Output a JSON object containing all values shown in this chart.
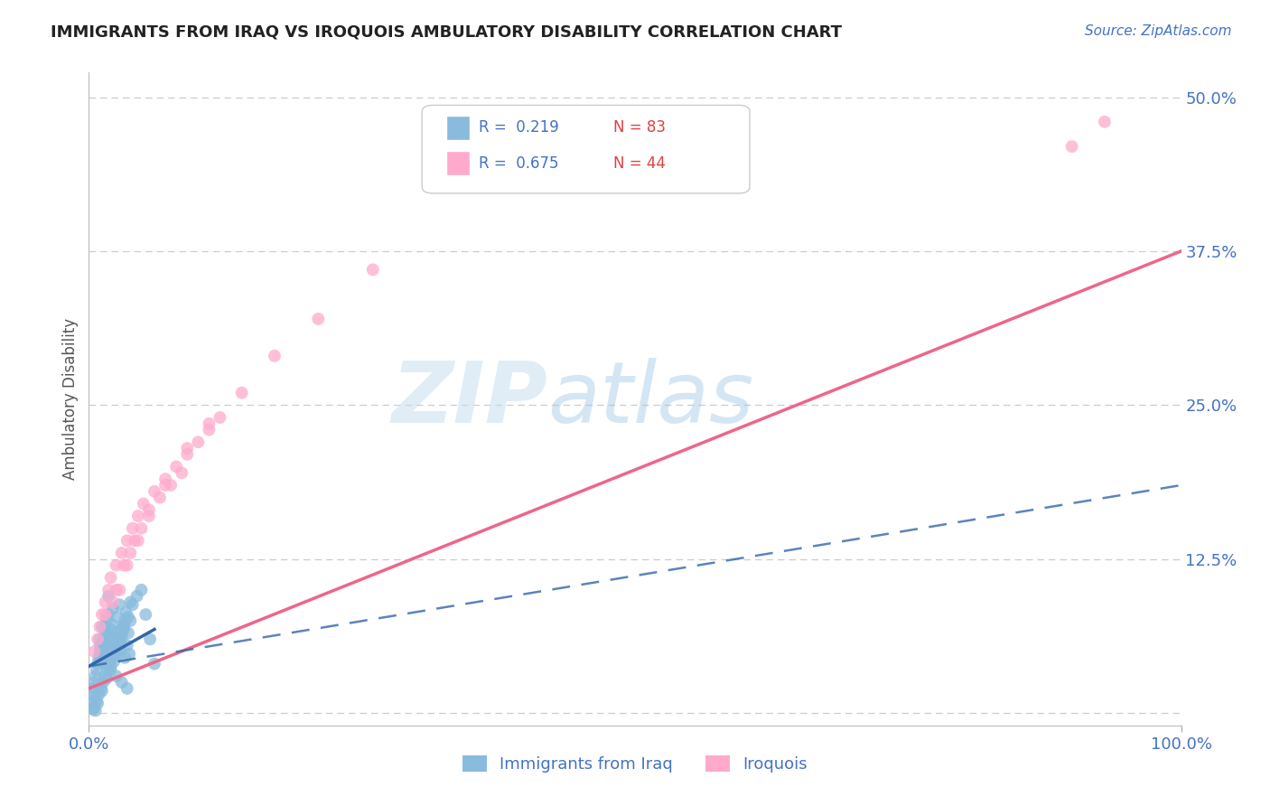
{
  "title": "IMMIGRANTS FROM IRAQ VS IROQUOIS AMBULATORY DISABILITY CORRELATION CHART",
  "source_text": "Source: ZipAtlas.com",
  "ylabel": "Ambulatory Disability",
  "watermark_zip": "ZIP",
  "watermark_atlas": "atlas",
  "legend_series1_label": "Immigrants from Iraq",
  "legend_series1_r": "0.219",
  "legend_series1_n": "83",
  "legend_series2_label": "Iroquois",
  "legend_series2_r": "0.675",
  "legend_series2_n": "44",
  "color_series1": "#88bbdd",
  "color_series2": "#ffaacc",
  "color_series1_line": "#3366aa",
  "color_series2_line": "#ee6688",
  "xlim": [
    0.0,
    1.0
  ],
  "ylim": [
    -0.01,
    0.52
  ],
  "background_color": "#ffffff",
  "series1_x": [
    0.002,
    0.003,
    0.004,
    0.005,
    0.006,
    0.007,
    0.008,
    0.009,
    0.01,
    0.01,
    0.01,
    0.011,
    0.012,
    0.012,
    0.013,
    0.014,
    0.015,
    0.015,
    0.015,
    0.016,
    0.017,
    0.018,
    0.018,
    0.019,
    0.02,
    0.02,
    0.02,
    0.021,
    0.022,
    0.022,
    0.023,
    0.024,
    0.025,
    0.025,
    0.026,
    0.027,
    0.028,
    0.028,
    0.029,
    0.03,
    0.03,
    0.031,
    0.032,
    0.033,
    0.034,
    0.035,
    0.035,
    0.036,
    0.037,
    0.038,
    0.005,
    0.007,
    0.009,
    0.011,
    0.013,
    0.015,
    0.017,
    0.019,
    0.021,
    0.023,
    0.025,
    0.027,
    0.029,
    0.031,
    0.033,
    0.008,
    0.012,
    0.016,
    0.02,
    0.024,
    0.028,
    0.032,
    0.036,
    0.04,
    0.044,
    0.048,
    0.052,
    0.056,
    0.06,
    0.004,
    0.006,
    0.018,
    0.038
  ],
  "series1_y": [
    0.01,
    0.015,
    0.02,
    0.025,
    0.03,
    0.035,
    0.04,
    0.045,
    0.05,
    0.055,
    0.06,
    0.045,
    0.05,
    0.07,
    0.055,
    0.06,
    0.065,
    0.07,
    0.04,
    0.075,
    0.048,
    0.052,
    0.08,
    0.058,
    0.062,
    0.068,
    0.035,
    0.072,
    0.055,
    0.085,
    0.042,
    0.058,
    0.065,
    0.03,
    0.078,
    0.048,
    0.052,
    0.088,
    0.058,
    0.062,
    0.025,
    0.068,
    0.072,
    0.045,
    0.082,
    0.055,
    0.02,
    0.065,
    0.048,
    0.075,
    0.005,
    0.01,
    0.015,
    0.02,
    0.025,
    0.03,
    0.035,
    0.04,
    0.045,
    0.05,
    0.055,
    0.06,
    0.065,
    0.07,
    0.075,
    0.008,
    0.018,
    0.028,
    0.038,
    0.048,
    0.058,
    0.068,
    0.078,
    0.088,
    0.095,
    0.1,
    0.08,
    0.06,
    0.04,
    0.003,
    0.002,
    0.095,
    0.09
  ],
  "series2_x": [
    0.005,
    0.008,
    0.01,
    0.012,
    0.015,
    0.018,
    0.02,
    0.022,
    0.025,
    0.028,
    0.03,
    0.032,
    0.035,
    0.038,
    0.04,
    0.042,
    0.045,
    0.048,
    0.05,
    0.055,
    0.06,
    0.065,
    0.07,
    0.075,
    0.08,
    0.085,
    0.09,
    0.1,
    0.11,
    0.12,
    0.015,
    0.025,
    0.035,
    0.045,
    0.055,
    0.07,
    0.09,
    0.11,
    0.14,
    0.17,
    0.21,
    0.26,
    0.9,
    0.93
  ],
  "series2_y": [
    0.05,
    0.06,
    0.07,
    0.08,
    0.09,
    0.1,
    0.11,
    0.09,
    0.12,
    0.1,
    0.13,
    0.12,
    0.14,
    0.13,
    0.15,
    0.14,
    0.16,
    0.15,
    0.17,
    0.165,
    0.18,
    0.175,
    0.19,
    0.185,
    0.2,
    0.195,
    0.21,
    0.22,
    0.23,
    0.24,
    0.08,
    0.1,
    0.12,
    0.14,
    0.16,
    0.185,
    0.215,
    0.235,
    0.26,
    0.29,
    0.32,
    0.36,
    0.46,
    0.48
  ],
  "iroquois_line_x0": 0.0,
  "iroquois_line_y0": 0.02,
  "iroquois_line_x1": 1.0,
  "iroquois_line_y1": 0.375,
  "iraq_solid_line_x0": 0.0,
  "iraq_solid_line_y0": 0.038,
  "iraq_solid_line_x1": 0.06,
  "iraq_solid_line_y1": 0.068,
  "iraq_dashed_line_x0": 0.0,
  "iraq_dashed_line_y0": 0.038,
  "iraq_dashed_line_x1": 1.0,
  "iraq_dashed_line_y1": 0.185
}
